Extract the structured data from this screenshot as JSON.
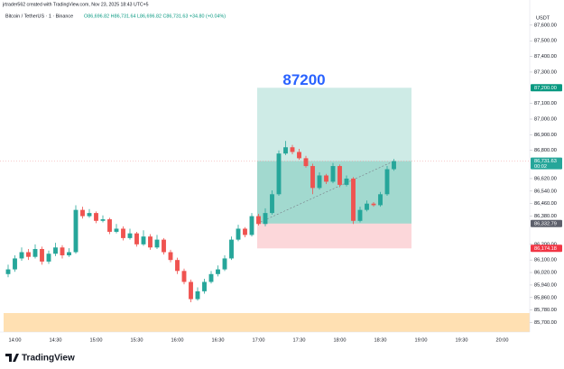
{
  "header": {
    "credit": "jrtrader562 created with TradingView.com, Nov 23, 2025 18:43 UTC+5",
    "symbol": "Bitcoin / TetherUS · 1 · Binance",
    "ohlc": "O86,696.82 H86,731.64 L86,696.82 C86,731.63 +34.80 (+0.04%)",
    "currency": "USDT",
    "brand": "TradingView"
  },
  "chart_data": {
    "type": "candlestick",
    "up_color": "#26a69a",
    "down_color": "#ef5350",
    "x": [
      "13:55",
      "14:00",
      "14:05",
      "14:10",
      "14:15",
      "14:20",
      "14:25",
      "14:30",
      "14:35",
      "14:40",
      "14:45",
      "14:50",
      "14:55",
      "15:00",
      "15:05",
      "15:10",
      "15:15",
      "15:20",
      "15:25",
      "15:30",
      "15:35",
      "15:40",
      "15:45",
      "15:50",
      "15:55",
      "16:00",
      "16:05",
      "16:10",
      "16:15",
      "16:20",
      "16:25",
      "16:30",
      "16:35",
      "16:40",
      "16:45",
      "16:50",
      "16:55",
      "17:00",
      "17:05",
      "17:10",
      "17:15",
      "17:20",
      "17:25",
      "17:30",
      "17:35",
      "17:40",
      "17:45",
      "17:50",
      "17:55",
      "18:00",
      "18:05",
      "18:10",
      "18:15",
      "18:20",
      "18:25",
      "18:30",
      "18:35",
      "18:40"
    ],
    "open": [
      86010,
      86040,
      86110,
      86150,
      86120,
      86170,
      86090,
      86140,
      86180,
      86130,
      86150,
      86420,
      86380,
      86400,
      86350,
      86360,
      86280,
      86300,
      86240,
      86270,
      86200,
      86250,
      86180,
      86230,
      86150,
      86100,
      86030,
      85960,
      85850,
      85900,
      85960,
      86010,
      86040,
      86110,
      86230,
      86300,
      86260,
      86380,
      86330,
      86400,
      86520,
      86780,
      86820,
      86790,
      86750,
      86700,
      86560,
      86640,
      86600,
      86700,
      86580,
      86620,
      86350,
      86420,
      86460,
      86450,
      86520,
      86680
    ],
    "high": [
      86070,
      86130,
      86180,
      86170,
      86200,
      86185,
      86160,
      86210,
      86195,
      86175,
      86450,
      86440,
      86425,
      86410,
      86385,
      86370,
      86330,
      86315,
      86300,
      86280,
      86290,
      86265,
      86260,
      86240,
      86165,
      86115,
      86045,
      85975,
      85925,
      85980,
      86030,
      86065,
      86130,
      86250,
      86325,
      86310,
      86400,
      86395,
      86430,
      86545,
      86800,
      86860,
      86835,
      86810,
      86765,
      86715,
      86660,
      86650,
      86720,
      86710,
      86640,
      86630,
      86440,
      86480,
      86470,
      86535,
      86700,
      86745
    ],
    "low": [
      85990,
      86025,
      86095,
      86100,
      86110,
      86070,
      86075,
      86125,
      86110,
      86120,
      86140,
      86365,
      86370,
      86335,
      86340,
      86265,
      86270,
      86225,
      86230,
      86185,
      86190,
      86165,
      86170,
      86135,
      86085,
      86010,
      85945,
      85830,
      85840,
      85885,
      85950,
      85995,
      86030,
      86100,
      86220,
      86245,
      86250,
      86320,
      86315,
      86390,
      86510,
      86770,
      86775,
      86740,
      86690,
      86520,
      86550,
      86585,
      86590,
      86565,
      86570,
      86330,
      86340,
      86410,
      86440,
      86440,
      86510,
      86670
    ],
    "close": [
      86040,
      86110,
      86150,
      86120,
      86170,
      86090,
      86140,
      86180,
      86130,
      86150,
      86420,
      86380,
      86400,
      86350,
      86360,
      86280,
      86300,
      86240,
      86270,
      86200,
      86250,
      86180,
      86230,
      86150,
      86100,
      86030,
      85960,
      85850,
      85900,
      85960,
      86010,
      86040,
      86110,
      86230,
      86300,
      86260,
      86380,
      86330,
      86400,
      86520,
      86780,
      86820,
      86790,
      86750,
      86700,
      86560,
      86640,
      86600,
      86700,
      86580,
      86620,
      86350,
      86420,
      86460,
      86450,
      86520,
      86680,
      86731.63
    ],
    "xlim": [
      "13:49",
      "20:20"
    ],
    "xticks": [
      "14:00",
      "14:30",
      "15:00",
      "15:30",
      "16:00",
      "16:30",
      "17:00",
      "17:30",
      "18:00",
      "18:30",
      "19:00",
      "19:30",
      "20:00"
    ],
    "ylim": [
      85640,
      87680
    ],
    "yticks": [
      {
        "value": 87600,
        "label": "87,600.00"
      },
      {
        "value": 87500,
        "label": "87,500.00"
      },
      {
        "value": 87400,
        "label": "87,400.00"
      },
      {
        "value": 87300,
        "label": "87,300.00"
      },
      {
        "value": 87100,
        "label": "87,100.00"
      },
      {
        "value": 87000,
        "label": "87,000.00"
      },
      {
        "value": 86900,
        "label": "86,900.00"
      },
      {
        "value": 86800,
        "label": "86,800.00"
      },
      {
        "value": 86620,
        "label": "86,620.00"
      },
      {
        "value": 86540,
        "label": "86,540.00"
      },
      {
        "value": 86460,
        "label": "86,460.00"
      },
      {
        "value": 86380,
        "label": "86,380.00"
      },
      {
        "value": 86200,
        "label": "86,200.00"
      },
      {
        "value": 86100,
        "label": "86,100.00"
      },
      {
        "value": 86020,
        "label": "86,020.00"
      },
      {
        "value": 85940,
        "label": "85,940.00"
      },
      {
        "value": 85860,
        "label": "85,860.00"
      },
      {
        "value": 85780,
        "label": "85,780.00"
      },
      {
        "value": 85700,
        "label": "85,700.00"
      }
    ],
    "grid": false,
    "last_price": {
      "value": 86731.63,
      "label": "86,731.63"
    },
    "countdown": "00:02",
    "position": {
      "start": "16:59",
      "end": "18:53",
      "target_text": "87200",
      "target": {
        "value": 87200,
        "label": "87,200.00"
      },
      "entry": {
        "value": 86332.79,
        "label": "86,332.79"
      },
      "stop": {
        "value": 86174.18,
        "label": "86,174.18"
      }
    }
  }
}
